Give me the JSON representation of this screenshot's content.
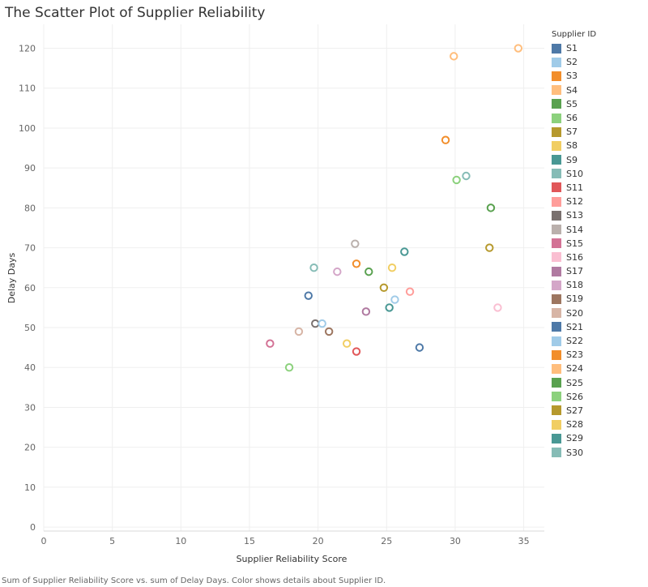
{
  "title": "The Scatter Plot of Supplier Reliability",
  "caption": "Sum of Supplier Reliability Score vs. sum of Delay Days.  Color shows details about Supplier ID.",
  "legend_title": "Supplier ID",
  "chart_data": {
    "type": "scatter",
    "title": "The Scatter Plot of Supplier Reliability",
    "xlabel": "Supplier Reliability Score",
    "ylabel": "Delay Days",
    "xlim": [
      0,
      36.5
    ],
    "ylim": [
      -1,
      126
    ],
    "xticks": [
      0,
      5,
      10,
      15,
      20,
      25,
      30,
      35
    ],
    "yticks": [
      0,
      10,
      20,
      30,
      40,
      50,
      60,
      70,
      80,
      90,
      100,
      110,
      120
    ],
    "grid": true,
    "legend": "right",
    "points": [
      {
        "id": "S1",
        "x": 19.3,
        "y": 58,
        "color": "#4e79a7"
      },
      {
        "id": "S2",
        "x": 25.6,
        "y": 57,
        "color": "#a0cbe8"
      },
      {
        "id": "S3",
        "x": 29.3,
        "y": 97,
        "color": "#f28e2b"
      },
      {
        "id": "S4",
        "x": 29.9,
        "y": 118,
        "color": "#ffbe7d"
      },
      {
        "id": "S5",
        "x": 23.7,
        "y": 64,
        "color": "#59a14f"
      },
      {
        "id": "S6",
        "x": 30.1,
        "y": 87,
        "color": "#8cd17d"
      },
      {
        "id": "S7",
        "x": 24.8,
        "y": 60,
        "color": "#b6992d"
      },
      {
        "id": "S8",
        "x": 22.1,
        "y": 46,
        "color": "#f1ce63"
      },
      {
        "id": "S9",
        "x": 25.2,
        "y": 55,
        "color": "#499894"
      },
      {
        "id": "S10",
        "x": 30.8,
        "y": 88,
        "color": "#86bcb6"
      },
      {
        "id": "S11",
        "x": 22.8,
        "y": 44,
        "color": "#e15759"
      },
      {
        "id": "S12",
        "x": 26.7,
        "y": 59,
        "color": "#ff9d9a"
      },
      {
        "id": "S13",
        "x": 19.8,
        "y": 51,
        "color": "#79706e"
      },
      {
        "id": "S14",
        "x": 22.7,
        "y": 71,
        "color": "#bab0ac"
      },
      {
        "id": "S15",
        "x": 16.5,
        "y": 46,
        "color": "#d37295"
      },
      {
        "id": "S16",
        "x": 33.1,
        "y": 55,
        "color": "#fabfd2"
      },
      {
        "id": "S17",
        "x": 23.5,
        "y": 54,
        "color": "#b07aa1"
      },
      {
        "id": "S18",
        "x": 21.4,
        "y": 64,
        "color": "#d4a6c8"
      },
      {
        "id": "S19",
        "x": 20.8,
        "y": 49,
        "color": "#9d7660"
      },
      {
        "id": "S20",
        "x": 18.6,
        "y": 49,
        "color": "#d7b5a6"
      },
      {
        "id": "S21",
        "x": 27.4,
        "y": 45,
        "color": "#4e79a7"
      },
      {
        "id": "S22",
        "x": 20.3,
        "y": 51,
        "color": "#a0cbe8"
      },
      {
        "id": "S23",
        "x": 22.8,
        "y": 66,
        "color": "#f28e2b"
      },
      {
        "id": "S24",
        "x": 34.6,
        "y": 120,
        "color": "#ffbe7d"
      },
      {
        "id": "S25",
        "x": 32.6,
        "y": 80,
        "color": "#59a14f"
      },
      {
        "id": "S26",
        "x": 17.9,
        "y": 40,
        "color": "#8cd17d"
      },
      {
        "id": "S27",
        "x": 32.5,
        "y": 70,
        "color": "#b6992d"
      },
      {
        "id": "S28",
        "x": 25.4,
        "y": 65,
        "color": "#f1ce63"
      },
      {
        "id": "S29",
        "x": 26.3,
        "y": 69,
        "color": "#499894"
      },
      {
        "id": "S30",
        "x": 19.7,
        "y": 65,
        "color": "#86bcb6"
      }
    ]
  }
}
